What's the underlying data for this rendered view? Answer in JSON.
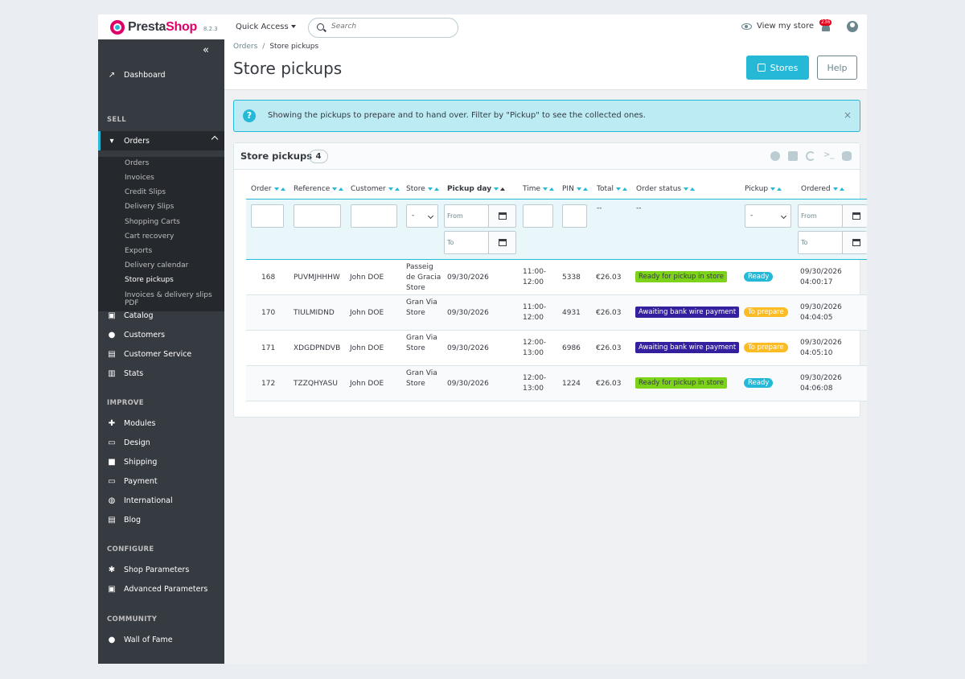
{
  "header": {
    "logo_prefix": "Presta",
    "logo_suffix": "Shop",
    "version": "8.2.3",
    "quick_access": "Quick Access",
    "search_placeholder": "Search",
    "view_store": "View my store",
    "notifications_count": "236"
  },
  "sidebar": {
    "dashboard": "Dashboard",
    "section_sell": "SELL",
    "orders": "Orders",
    "orders_sub": [
      "Orders",
      "Invoices",
      "Credit Slips",
      "Delivery Slips",
      "Shopping Carts",
      "Cart recovery",
      "Exports",
      "Delivery calendar",
      "Store pickups",
      "Invoices & delivery slips PDF"
    ],
    "catalog": "Catalog",
    "customers": "Customers",
    "customer_service": "Customer Service",
    "stats": "Stats",
    "section_improve": "IMPROVE",
    "modules": "Modules",
    "design": "Design",
    "shipping": "Shipping",
    "payment": "Payment",
    "international": "International",
    "blog": "Blog",
    "section_configure": "CONFIGURE",
    "shop_parameters": "Shop Parameters",
    "advanced_parameters": "Advanced Parameters",
    "section_community": "COMMUNITY",
    "wall_of_fame": "Wall of Fame"
  },
  "breadcrumb": {
    "parent": "Orders",
    "separator": "/",
    "current": "Store pickups"
  },
  "page": {
    "title": "Store pickups",
    "stores_button": "Stores",
    "help_button": "Help"
  },
  "alert": {
    "icon": "?",
    "text": "Showing the pickups to prepare and to hand over. Filter by \"Pickup\" to see the collected ones.",
    "close": "×"
  },
  "card": {
    "title": "Store pickups",
    "count": "4",
    "terminal_icon_text": ">_"
  },
  "table": {
    "headers": [
      "Order",
      "Reference",
      "Customer",
      "Store",
      "Pickup day",
      "Time",
      "PIN",
      "Total",
      "Order status",
      "Pickup",
      "Ordered"
    ],
    "filters": {
      "store_select": "-",
      "pickup_select": "-",
      "from_placeholder": "From",
      "to_placeholder": "To",
      "total_dash": "--",
      "status_dash": "--"
    },
    "rows": [
      {
        "order": "168",
        "reference": "PUVMJHHHW",
        "customer": "John DOE",
        "store": "Passeig de Gracia Store",
        "pickup_day": "09/30/2026",
        "time_from": "11:00-",
        "time_to": "12:00",
        "pin": "5338",
        "total": "€26.03",
        "order_status": "Ready for pickup in store",
        "status_color": "#7cd319",
        "pickup": "Ready",
        "pickup_color": "#25b9d7",
        "ordered_date": "09/30/2026",
        "ordered_time": "04:00:17"
      },
      {
        "order": "170",
        "reference": "TIULMIDND",
        "customer": "John DOE",
        "store": "Gran Via Store",
        "pickup_day": "09/30/2026",
        "time_from": "11:00-",
        "time_to": "12:00",
        "pin": "4931",
        "total": "€26.03",
        "order_status": "Awaiting bank wire payment",
        "status_color": "#34209e",
        "pickup": "To prepare",
        "pickup_color": "#fbbb22",
        "ordered_date": "09/30/2026",
        "ordered_time": "04:04:05"
      },
      {
        "order": "171",
        "reference": "XDGDPNDVB",
        "customer": "John DOE",
        "store": "Gran Via Store",
        "pickup_day": "09/30/2026",
        "time_from": "12:00-",
        "time_to": "13:00",
        "pin": "6986",
        "total": "€26.03",
        "order_status": "Awaiting bank wire payment",
        "status_color": "#34209e",
        "pickup": "To prepare",
        "pickup_color": "#fbbb22",
        "ordered_date": "09/30/2026",
        "ordered_time": "04:05:10"
      },
      {
        "order": "172",
        "reference": "TZZQHYASU",
        "customer": "John DOE",
        "store": "Gran Via Store",
        "pickup_day": "09/30/2026",
        "time_from": "12:00-",
        "time_to": "13:00",
        "pin": "1224",
        "total": "€26.03",
        "order_status": "Ready for pickup in store",
        "status_color": "#7cd319",
        "pickup": "Ready",
        "pickup_color": "#25b9d7",
        "ordered_date": "09/30/2026",
        "ordered_time": "04:06:08"
      }
    ]
  },
  "colors": {
    "accent": "#25b9d7",
    "brand": "#df0067",
    "sidebar": "#363a41"
  }
}
